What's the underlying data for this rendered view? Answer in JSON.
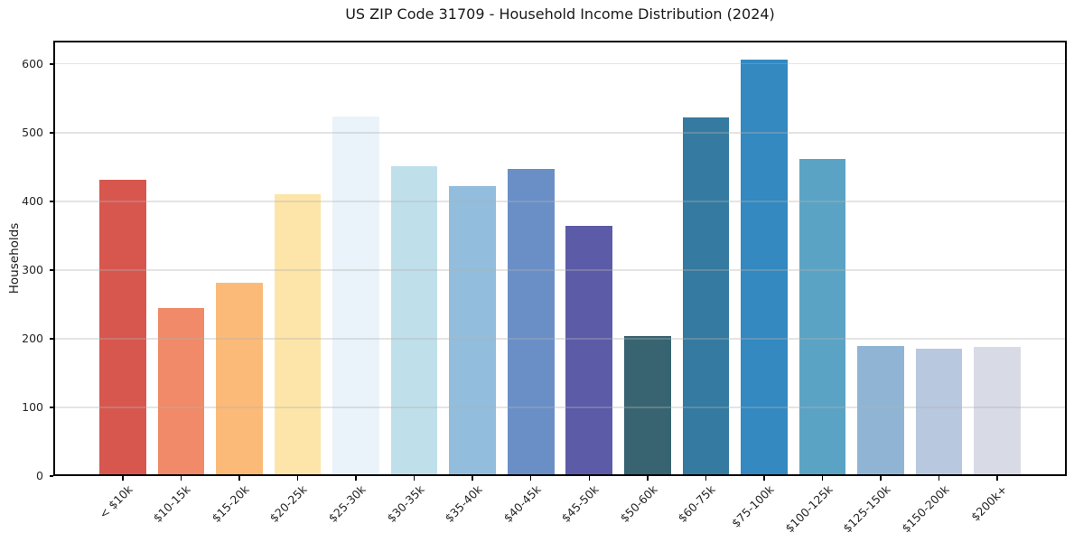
{
  "chart_data": {
    "type": "bar",
    "title": "US ZIP Code 31709 - Household Income Distribution (2024)",
    "xlabel": "",
    "ylabel": "Households",
    "categories": [
      "< $10k",
      "$10-15k",
      "$15-20k",
      "$20-25k",
      "$25-30k",
      "$30-35k",
      "$35-40k",
      "$40-45k",
      "$45-50k",
      "$50-60k",
      "$60-75k",
      "$75-100k",
      "$100-125k",
      "$125-150k",
      "$150-200k",
      "$200k+"
    ],
    "values": [
      432,
      245,
      281,
      411,
      523,
      451,
      422,
      447,
      364,
      204,
      522,
      607,
      462,
      190,
      186,
      188
    ],
    "bar_colors": [
      "#d7574f",
      "#f08a68",
      "#fbba78",
      "#fde5a9",
      "#e9f3f9",
      "#bfdfea",
      "#92bddc",
      "#6a8fc7",
      "#5c5ba8",
      "#386471",
      "#357aa0",
      "#3389c0",
      "#5ba3c4",
      "#90b5d4",
      "#b8c8de",
      "#d8dae6"
    ],
    "yticks": [
      0,
      100,
      200,
      300,
      400,
      500,
      600
    ],
    "ylim": [
      0,
      634
    ],
    "grid": "horizontal",
    "legend_position": "none"
  },
  "colors": {
    "background": "#ffffff",
    "spine": "#000000",
    "grid": "#e8e8e8",
    "text": "#262626"
  }
}
